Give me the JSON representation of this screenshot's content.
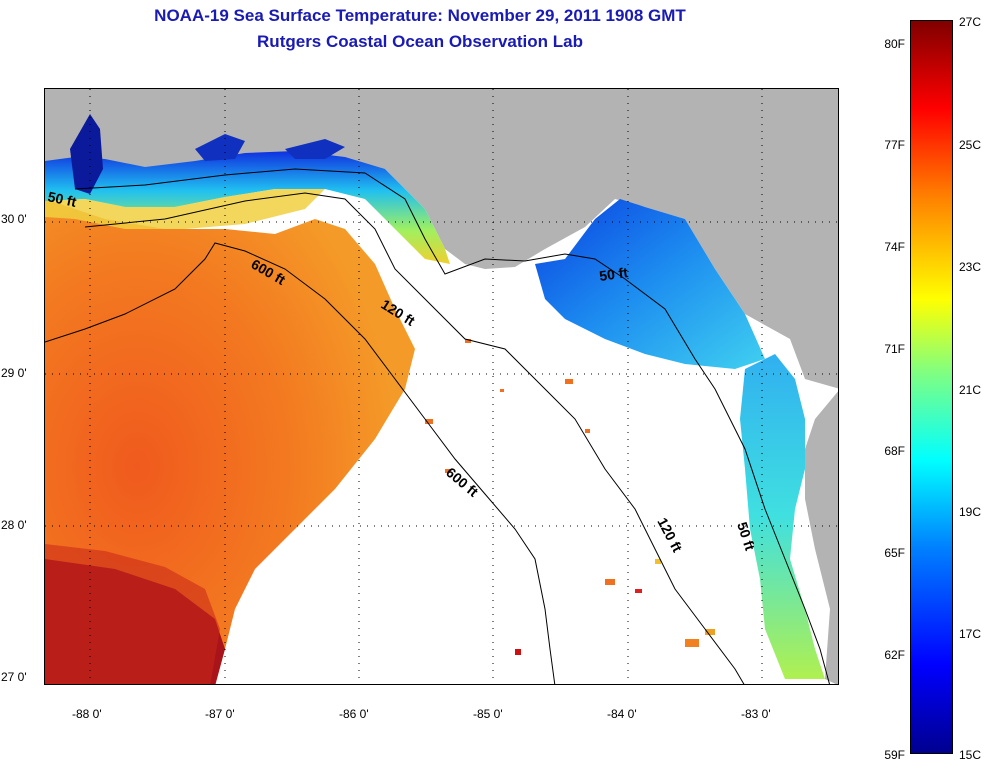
{
  "header": {
    "title": "NOAA-19 Sea Surface Temperature:  November 29, 2011 1908 GMT",
    "subtitle": "Rutgers Coastal Ocean Observation Lab"
  },
  "map": {
    "lat_labels": [
      "30 0'",
      "29 0'",
      "28 0'",
      "27 0'"
    ],
    "lon_labels": [
      "-88 0'",
      "-87 0'",
      "-86 0'",
      "-85 0'",
      "-84 0'",
      "-83 0'"
    ],
    "isobath_labels": [
      "50 ft",
      "600 ft",
      "120 ft",
      "50 ft",
      "600 ft",
      "120 ft",
      "50 ft"
    ],
    "colors": {
      "land": "#b3b3b3",
      "cloud": "#ffffff",
      "warm_core": "#e84a1a",
      "hot_corner": "#9a0e0e"
    }
  },
  "colorbar": {
    "fahrenheit": [
      "80F",
      "77F",
      "74F",
      "71F",
      "68F",
      "65F",
      "62F",
      "59F"
    ],
    "celsius": [
      "27C",
      "25C",
      "23C",
      "21C",
      "19C",
      "17C",
      "15C"
    ]
  }
}
